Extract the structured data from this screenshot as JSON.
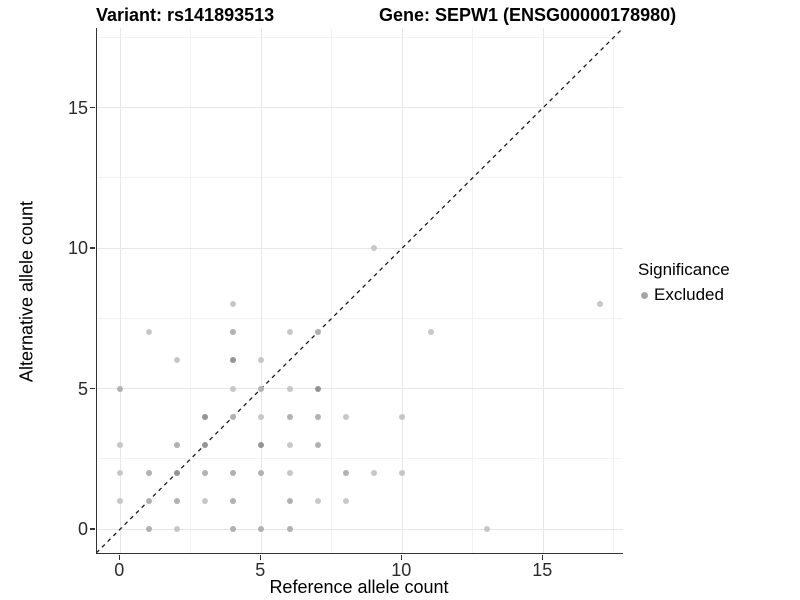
{
  "titles": {
    "left": "Variant: rs141893513",
    "right": "Gene: SEPW1 (ENSG00000178980)"
  },
  "legend": {
    "title": "Significance",
    "items": [
      {
        "label": "Excluded",
        "color": "#a5a5a5"
      }
    ]
  },
  "colors": {
    "point_light": "#c7c7c7",
    "point_medium": "#b1b1b1",
    "point_dark": "#959595",
    "grid_major": "#e7e7e7",
    "grid_minor": "#f2f2f2",
    "axis_line": "#333333",
    "identity_line": "#1a1a1a"
  },
  "chart_data": {
    "type": "scatter",
    "title": "Variant: rs141893513  /  Gene: SEPW1 (ENSG00000178980)",
    "xlabel": "Reference allele count",
    "ylabel": "Alternative allele count",
    "xlim": [
      -0.85,
      17.85
    ],
    "ylim": [
      -0.85,
      17.85
    ],
    "x_ticks": [
      0,
      5,
      10,
      15
    ],
    "y_ticks": [
      0,
      5,
      10,
      15
    ],
    "x_minor_gridlines": [
      2.5,
      7.5,
      12.5,
      17.5
    ],
    "y_minor_gridlines": [
      2.5,
      7.5,
      12.5,
      17.5
    ],
    "grid": true,
    "legend_position": "right",
    "identity_line": {
      "style": "dashed",
      "from": [
        -0.85,
        -0.85
      ],
      "to": [
        17.85,
        17.85
      ]
    },
    "series": [
      {
        "name": "Excluded",
        "points": [
          [
            1,
            0,
            "m"
          ],
          [
            2,
            0,
            "l"
          ],
          [
            4,
            0,
            "m"
          ],
          [
            5,
            0,
            "m"
          ],
          [
            6,
            0,
            "m"
          ],
          [
            13,
            0,
            "l"
          ],
          [
            0,
            1,
            "l"
          ],
          [
            1,
            1,
            "m"
          ],
          [
            2,
            1,
            "m"
          ],
          [
            3,
            1,
            "l"
          ],
          [
            4,
            1,
            "m"
          ],
          [
            6,
            1,
            "m"
          ],
          [
            7,
            1,
            "l"
          ],
          [
            8,
            1,
            "l"
          ],
          [
            0,
            2,
            "l"
          ],
          [
            1,
            2,
            "m"
          ],
          [
            2,
            2,
            "d"
          ],
          [
            3,
            2,
            "m"
          ],
          [
            4,
            2,
            "m"
          ],
          [
            5,
            2,
            "m"
          ],
          [
            6,
            2,
            "l"
          ],
          [
            8,
            2,
            "m"
          ],
          [
            9,
            2,
            "l"
          ],
          [
            10,
            2,
            "l"
          ],
          [
            0,
            3,
            "l"
          ],
          [
            2,
            3,
            "m"
          ],
          [
            3,
            3,
            "d"
          ],
          [
            5,
            3,
            "d"
          ],
          [
            6,
            3,
            "l"
          ],
          [
            7,
            3,
            "m"
          ],
          [
            3,
            4,
            "d"
          ],
          [
            4,
            4,
            "m"
          ],
          [
            5,
            4,
            "l"
          ],
          [
            6,
            4,
            "m"
          ],
          [
            7,
            4,
            "m"
          ],
          [
            8,
            4,
            "l"
          ],
          [
            10,
            4,
            "l"
          ],
          [
            0,
            5,
            "m"
          ],
          [
            4,
            5,
            "l"
          ],
          [
            5,
            5,
            "m"
          ],
          [
            6,
            5,
            "l"
          ],
          [
            7,
            5,
            "d"
          ],
          [
            2,
            6,
            "l"
          ],
          [
            4,
            6,
            "d"
          ],
          [
            5,
            6,
            "l"
          ],
          [
            1,
            7,
            "l"
          ],
          [
            4,
            7,
            "m"
          ],
          [
            6,
            7,
            "l"
          ],
          [
            7,
            7,
            "m"
          ],
          [
            11,
            7,
            "l"
          ],
          [
            4,
            8,
            "l"
          ],
          [
            17,
            8,
            "l"
          ],
          [
            9,
            10,
            "l"
          ]
        ]
      }
    ]
  }
}
